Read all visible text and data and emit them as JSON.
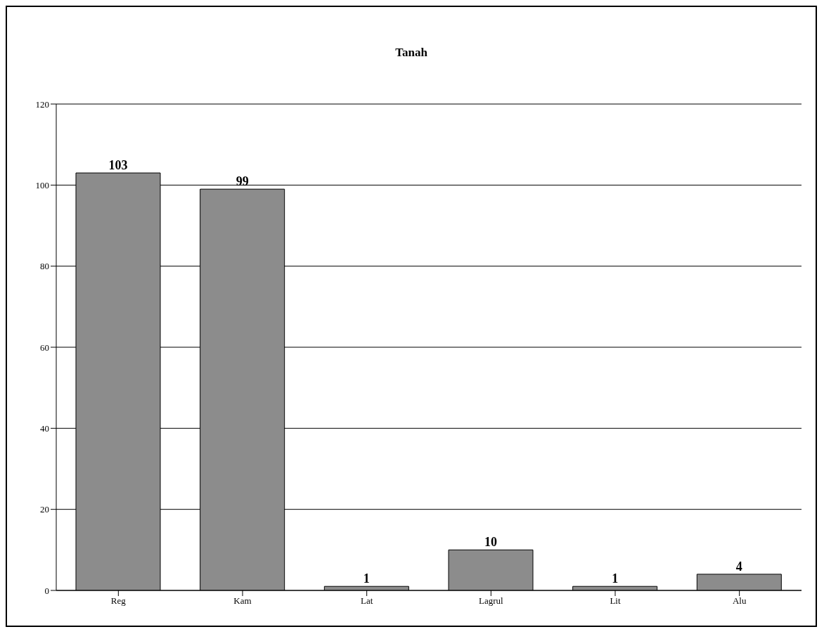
{
  "chart_data": {
    "type": "bar",
    "title": "Tanah",
    "categories": [
      "Reg",
      "Kam",
      "Lat",
      "Lagrul",
      "Lit",
      "Alu"
    ],
    "values": [
      103,
      99,
      1,
      10,
      1,
      4
    ],
    "color": "#8c8c8c",
    "ylim": [
      0,
      120
    ],
    "yticks": [
      0,
      20,
      40,
      60,
      80,
      100,
      120
    ],
    "grid": "y",
    "data_labels": true
  }
}
